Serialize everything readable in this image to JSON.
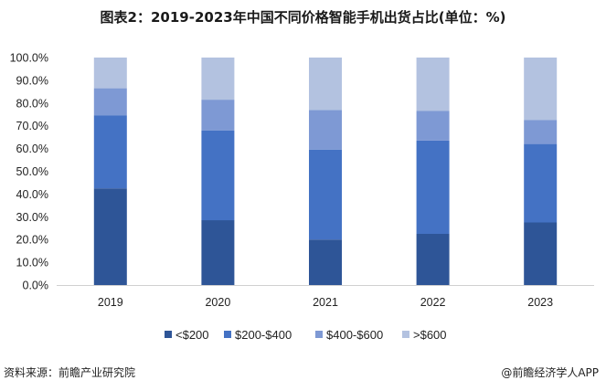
{
  "title": "图表2：2019-2023年中国不同价格智能手机出货占比(单位：%)",
  "source_left": "资料来源：前瞻产业研究院",
  "source_right": "@前瞻经济学人APP",
  "chart_data": {
    "type": "bar",
    "stacked": true,
    "categories": [
      "2019",
      "2020",
      "2021",
      "2022",
      "2023"
    ],
    "y_ticks": [
      "0.0%",
      "10.0%",
      "20.0%",
      "30.0%",
      "40.0%",
      "50.0%",
      "60.0%",
      "70.0%",
      "80.0%",
      "90.0%",
      "100.0%"
    ],
    "ylim": [
      0,
      100
    ],
    "grid": false,
    "legend_position": "bottom",
    "series": [
      {
        "name": "<$200",
        "color": "#2e5597",
        "values": [
          42.5,
          28.5,
          20.0,
          22.5,
          27.5
        ]
      },
      {
        "name": "$200-$400",
        "color": "#4472c4",
        "values": [
          32.0,
          39.5,
          39.5,
          41.0,
          34.5
        ]
      },
      {
        "name": "$400-$600",
        "color": "#7e99d4",
        "values": [
          12.0,
          13.5,
          17.5,
          13.0,
          10.5
        ]
      },
      {
        "name": ">$600",
        "color": "#b3c2e0",
        "values": [
          13.5,
          18.5,
          23.0,
          23.5,
          27.5
        ]
      }
    ]
  }
}
